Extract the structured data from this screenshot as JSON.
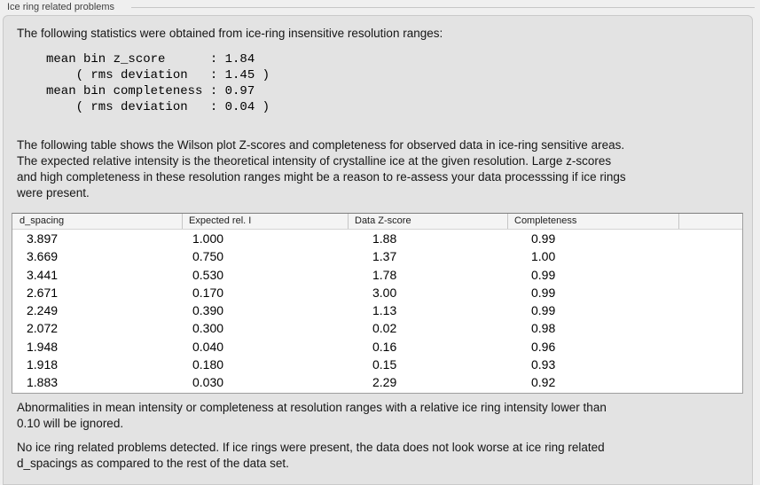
{
  "group_box": {
    "title": "Ice ring related problems"
  },
  "intro": {
    "text": "The following statistics were obtained from ice-ring insensitive resolution ranges:"
  },
  "stats_block": {
    "lines": [
      "mean bin z_score      : 1.84",
      "    ( rms deviation   : 1.45 )",
      "mean bin completeness : 0.97",
      "    ( rms deviation   : 0.04 )"
    ]
  },
  "description": {
    "lines": [
      "The following table shows the Wilson plot Z-scores and completeness for observed data in ice-ring sensitive areas.",
      "The expected relative intensity is the theoretical intensity of crystalline ice at the given resolution. Large z-scores",
      "and high completeness in these resolution ranges might be a reason to re-assess your data processsing if ice rings",
      "were present."
    ]
  },
  "table": {
    "columns": [
      "d_spacing",
      "Expected rel. I",
      "Data Z-score",
      "Completeness"
    ],
    "rows": [
      [
        "3.897",
        "1.000",
        "1.88",
        "0.99"
      ],
      [
        "3.669",
        "0.750",
        "1.37",
        "1.00"
      ],
      [
        "3.441",
        "0.530",
        "1.78",
        "0.99"
      ],
      [
        "2.671",
        "0.170",
        "3.00",
        "0.99"
      ],
      [
        "2.249",
        "0.390",
        "1.13",
        "0.99"
      ],
      [
        "2.072",
        "0.300",
        "0.02",
        "0.98"
      ],
      [
        "1.948",
        "0.040",
        "0.16",
        "0.96"
      ],
      [
        "1.918",
        "0.180",
        "0.15",
        "0.93"
      ],
      [
        "1.883",
        "0.030",
        "2.29",
        "0.92"
      ]
    ]
  },
  "note": {
    "lines": [
      "Abnormalities in mean intensity or completeness at resolution ranges with a relative ice ring intensity lower than",
      "0.10 will be ignored."
    ]
  },
  "conclusion": {
    "lines": [
      "No ice ring related problems detected. If ice rings were present, the data does not look worse at ice ring related",
      "d_spacings as compared to the rest of the data set."
    ]
  }
}
